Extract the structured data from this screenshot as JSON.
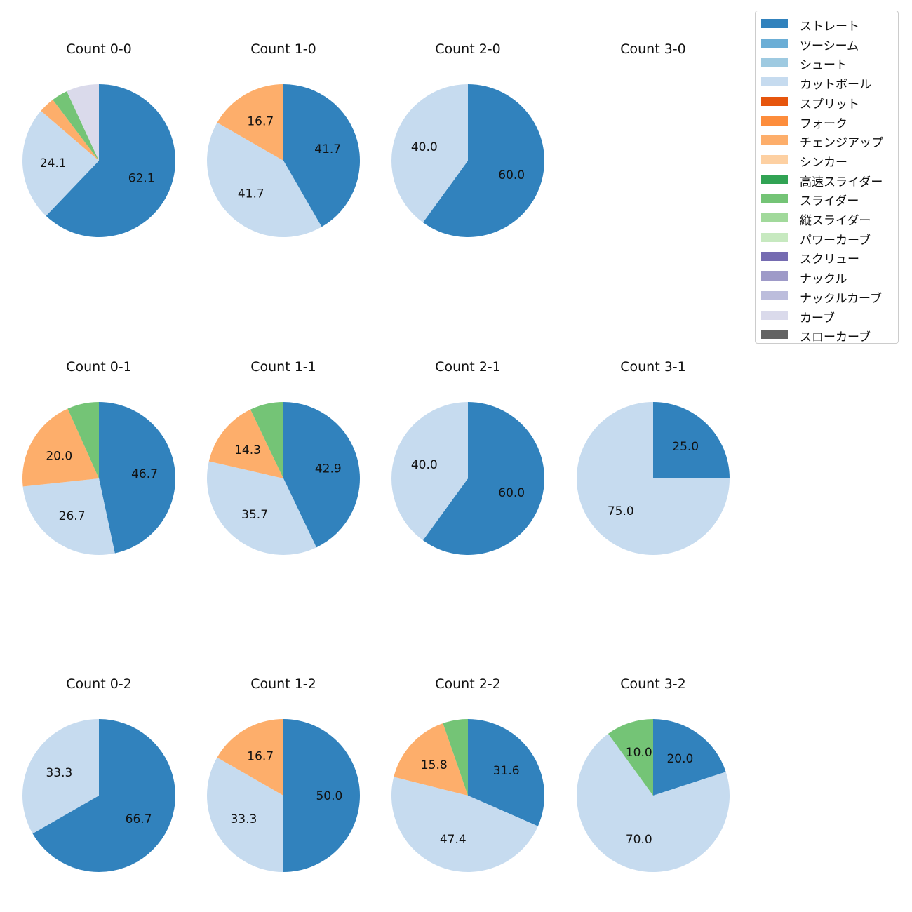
{
  "chart_data": {
    "type": "pie",
    "legend_position": "top-right",
    "series_colors": {
      "ストレート": "#3182bd",
      "ツーシーム": "#6baed6",
      "シュート": "#9ecae1",
      "カットボール": "#c6dbef",
      "スプリット": "#e6550d",
      "フォーク": "#fd8d3c",
      "チェンジアップ": "#fdae6b",
      "シンカー": "#fdd0a2",
      "高速スライダー": "#31a354",
      "スライダー": "#74c476",
      "縦スライダー": "#a1d99b",
      "パワーカーブ": "#c7e9c0",
      "スクリュー": "#756bb1",
      "ナックル": "#9e9ac8",
      "ナックルカーブ": "#bcbddc",
      "カーブ": "#dadaeb",
      "スローカーブ": "#636363"
    },
    "legend": [
      "ストレート",
      "ツーシーム",
      "シュート",
      "カットボール",
      "スプリット",
      "フォーク",
      "チェンジアップ",
      "シンカー",
      "高速スライダー",
      "スライダー",
      "縦スライダー",
      "パワーカーブ",
      "スクリュー",
      "ナックル",
      "ナックルカーブ",
      "カーブ",
      "スローカーブ"
    ],
    "charts": [
      {
        "title": "Count 0-0",
        "slices": [
          {
            "label": "ストレート",
            "value": 62.1,
            "text": "62.1"
          },
          {
            "label": "カットボール",
            "value": 24.1,
            "text": "24.1"
          },
          {
            "label": "チェンジアップ",
            "value": 3.4,
            "text": ""
          },
          {
            "label": "スライダー",
            "value": 3.4,
            "text": ""
          },
          {
            "label": "カーブ",
            "value": 6.9,
            "text": ""
          }
        ]
      },
      {
        "title": "Count 1-0",
        "slices": [
          {
            "label": "ストレート",
            "value": 41.7,
            "text": "41.7"
          },
          {
            "label": "カットボール",
            "value": 41.7,
            "text": "41.7"
          },
          {
            "label": "チェンジアップ",
            "value": 16.7,
            "text": "16.7"
          }
        ]
      },
      {
        "title": "Count 2-0",
        "slices": [
          {
            "label": "ストレート",
            "value": 60.0,
            "text": "60.0"
          },
          {
            "label": "カットボール",
            "value": 40.0,
            "text": "40.0"
          }
        ]
      },
      {
        "title": "Count 3-0",
        "slices": []
      },
      {
        "title": "Count 0-1",
        "slices": [
          {
            "label": "ストレート",
            "value": 46.7,
            "text": "46.7"
          },
          {
            "label": "カットボール",
            "value": 26.7,
            "text": "26.7"
          },
          {
            "label": "チェンジアップ",
            "value": 20.0,
            "text": "20.0"
          },
          {
            "label": "スライダー",
            "value": 6.7,
            "text": ""
          }
        ]
      },
      {
        "title": "Count 1-1",
        "slices": [
          {
            "label": "ストレート",
            "value": 42.9,
            "text": "42.9"
          },
          {
            "label": "カットボール",
            "value": 35.7,
            "text": "35.7"
          },
          {
            "label": "チェンジアップ",
            "value": 14.3,
            "text": "14.3"
          },
          {
            "label": "スライダー",
            "value": 7.1,
            "text": ""
          }
        ]
      },
      {
        "title": "Count 2-1",
        "slices": [
          {
            "label": "ストレート",
            "value": 60.0,
            "text": "60.0"
          },
          {
            "label": "カットボール",
            "value": 40.0,
            "text": "40.0"
          }
        ]
      },
      {
        "title": "Count 3-1",
        "slices": [
          {
            "label": "ストレート",
            "value": 25.0,
            "text": "25.0"
          },
          {
            "label": "カットボール",
            "value": 75.0,
            "text": "75.0"
          }
        ]
      },
      {
        "title": "Count 0-2",
        "slices": [
          {
            "label": "ストレート",
            "value": 66.7,
            "text": "66.7"
          },
          {
            "label": "カットボール",
            "value": 33.3,
            "text": "33.3"
          }
        ]
      },
      {
        "title": "Count 1-2",
        "slices": [
          {
            "label": "ストレート",
            "value": 50.0,
            "text": "50.0"
          },
          {
            "label": "カットボール",
            "value": 33.3,
            "text": "33.3"
          },
          {
            "label": "チェンジアップ",
            "value": 16.7,
            "text": "16.7"
          }
        ]
      },
      {
        "title": "Count 2-2",
        "slices": [
          {
            "label": "ストレート",
            "value": 31.6,
            "text": "31.6"
          },
          {
            "label": "カットボール",
            "value": 47.4,
            "text": "47.4"
          },
          {
            "label": "チェンジアップ",
            "value": 15.8,
            "text": "15.8"
          },
          {
            "label": "スライダー",
            "value": 5.3,
            "text": ""
          }
        ]
      },
      {
        "title": "Count 3-2",
        "slices": [
          {
            "label": "ストレート",
            "value": 20.0,
            "text": "20.0"
          },
          {
            "label": "カットボール",
            "value": 70.0,
            "text": "70.0"
          },
          {
            "label": "スライダー",
            "value": 10.0,
            "text": "10.0"
          }
        ]
      }
    ]
  }
}
